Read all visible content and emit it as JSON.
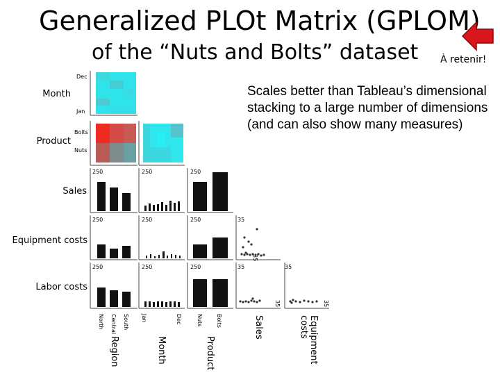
{
  "title_line1": "Generalized PLOt Matrix (GPLOM)",
  "title_line2": "of the “Nuts and Bolts” dataset",
  "note": "À retenir!",
  "bullet": "Scales better than Tableau’s dimensional stacking to a large number of dimensions (and can also show many measures)",
  "rows": {
    "month": "Month",
    "product": "Product",
    "sales": "Sales",
    "equipment": "Equipment costs",
    "labor": "Labor costs"
  },
  "ticks": {
    "dec": "Dec",
    "jan": "Jan",
    "bolts": "Bolts",
    "nuts": "Nuts",
    "v250": "250",
    "v35": "35"
  },
  "columns": {
    "region": "Region",
    "month": "Month",
    "product": "Product",
    "sales": "Sales",
    "equipment": "Equipment costs"
  },
  "col_ticks": {
    "north": "North",
    "central": "Central",
    "south": "South",
    "jan": "Jan",
    "dec": "Dec",
    "nuts": "Nuts",
    "bolts": "Bolts",
    "v35": "35"
  },
  "colors": {
    "cyan": "#27e3ea",
    "red": "#e8302a",
    "bars": "#111111",
    "arrow": "#d9161c"
  }
}
